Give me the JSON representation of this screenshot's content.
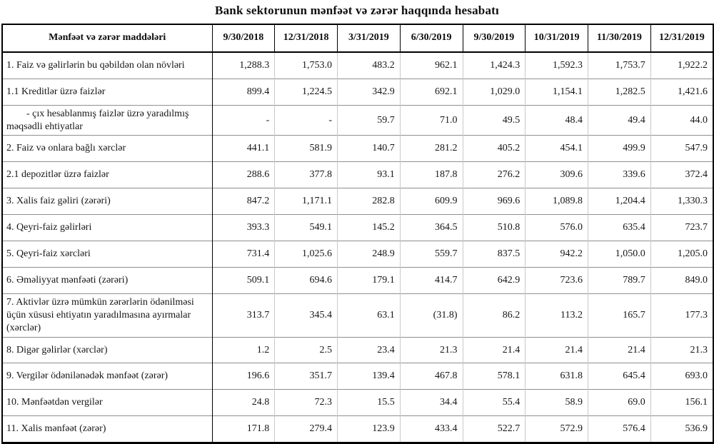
{
  "title": "Bank sektorunun mənfəət və zərər haqqında hesabatı",
  "table": {
    "columns": [
      "Mənfəət və zərər maddələri",
      "9/30/2018",
      "12/31/2018",
      "3/31/2019",
      "6/30/2019",
      "9/30/2019",
      "10/31/2019",
      "11/30/2019",
      "12/31/2019"
    ],
    "rows": [
      {
        "label": "1. Faiz və gəlirlərin bu qəbildən olan növləri",
        "indent": 0,
        "values": [
          "1,288.3",
          "1,753.0",
          "483.2",
          "962.1",
          "1,424.3",
          "1,592.3",
          "1,753.7",
          "1,922.2"
        ]
      },
      {
        "label": "1.1 Kreditlər üzrə faizlər",
        "indent": 1,
        "values": [
          "899.4",
          "1,224.5",
          "342.9",
          "692.1",
          "1,029.0",
          "1,154.1",
          "1,282.5",
          "1,421.6"
        ]
      },
      {
        "label": "- çıx hesablanmış faizlər üzrə yaradılmış məqsədli ehtiyatlar",
        "indent": 2,
        "values": [
          "-",
          "-",
          "59.7",
          "71.0",
          "49.5",
          "48.4",
          "49.4",
          "44.0"
        ]
      },
      {
        "label": "2. Faiz və onlara bağlı xərclər",
        "indent": 0,
        "values": [
          "441.1",
          "581.9",
          "140.7",
          "281.2",
          "405.2",
          "454.1",
          "499.9",
          "547.9"
        ]
      },
      {
        "label": "2.1 depozitlər üzrə faizlər",
        "indent": 1,
        "values": [
          "288.6",
          "377.8",
          "93.1",
          "187.8",
          "276.2",
          "309.6",
          "339.6",
          "372.4"
        ]
      },
      {
        "label": "3. Xalis faiz gəliri (zərəri)",
        "indent": 0,
        "values": [
          "847.2",
          "1,171.1",
          "282.8",
          "609.9",
          "969.6",
          "1,089.8",
          "1,204.4",
          "1,330.3"
        ]
      },
      {
        "label": "4. Qeyri-faiz gəlirləri",
        "indent": 0,
        "values": [
          "393.3",
          "549.1",
          "145.2",
          "364.5",
          "510.8",
          "576.0",
          "635.4",
          "723.7"
        ]
      },
      {
        "label": "5. Qeyri-faiz xərcləri",
        "indent": 0,
        "values": [
          "731.4",
          "1,025.6",
          "248.9",
          "559.7",
          "837.5",
          "942.2",
          "1,050.0",
          "1,205.0"
        ]
      },
      {
        "label": "6. Əməliyyat mənfəəti (zərəri)",
        "indent": 0,
        "values": [
          "509.1",
          "694.6",
          "179.1",
          "414.7",
          "642.9",
          "723.6",
          "789.7",
          "849.0"
        ]
      },
      {
        "label": "7. Aktivlər üzrə mümkün zərərlərin ödənilməsi üçün xüsusi ehtiyatın yaradılmasına ayırmalar (xərclər)",
        "indent": 0,
        "values": [
          "313.7",
          "345.4",
          "63.1",
          "(31.8)",
          "86.2",
          "113.2",
          "165.7",
          "177.3"
        ]
      },
      {
        "label": "8. Digər gəlirlər (xərclər)",
        "indent": 0,
        "values": [
          "1.2",
          "2.5",
          "23.4",
          "21.3",
          "21.4",
          "21.4",
          "21.4",
          "21.3"
        ]
      },
      {
        "label": "9. Vergilər ödənilənədək mənfəət (zərər)",
        "indent": 0,
        "values": [
          "196.6",
          "351.7",
          "139.4",
          "467.8",
          "578.1",
          "631.8",
          "645.4",
          "693.0"
        ]
      },
      {
        "label": "10. Mənfəətdən vergilər",
        "indent": 0,
        "values": [
          "24.8",
          "72.3",
          "15.5",
          "34.4",
          "55.4",
          "58.9",
          "69.0",
          "156.1"
        ]
      },
      {
        "label": "11. Xalis mənfəət (zərər)",
        "indent": 0,
        "values": [
          "171.8",
          "279.4",
          "123.9",
          "433.4",
          "522.7",
          "572.9",
          "576.4",
          "536.9"
        ]
      }
    ]
  }
}
